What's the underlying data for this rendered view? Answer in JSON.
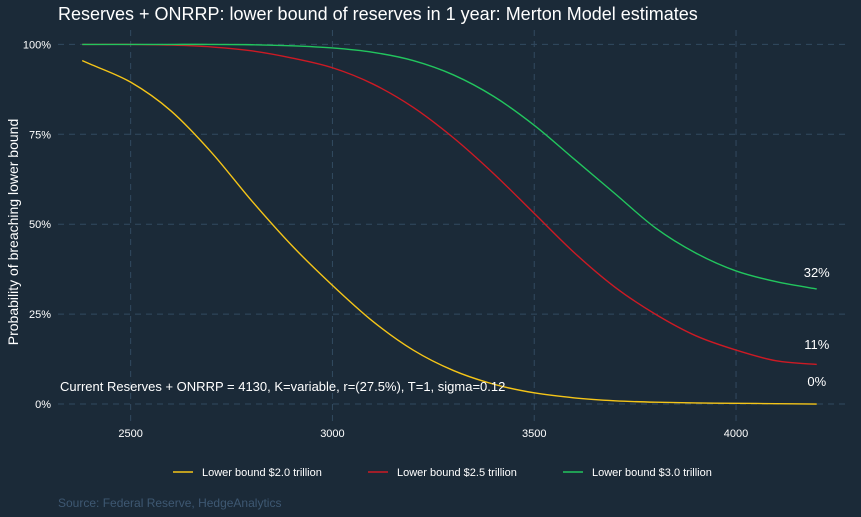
{
  "chart_data": {
    "type": "line",
    "title": "Reserves + ONRRP: lower bound of reserves in 1 year: Merton Model estimates",
    "xlabel": "",
    "ylabel": "Probability of breaching lower bound",
    "xlim": [
      2320,
      4270
    ],
    "ylim": [
      -0.05,
      1.04
    ],
    "x_ticks": [
      2500,
      3000,
      3500,
      4000
    ],
    "x_tick_labels": [
      "2500",
      "3000",
      "3500",
      "4000"
    ],
    "y_ticks": [
      0,
      0.25,
      0.5,
      0.75,
      1.0
    ],
    "y_tick_labels": [
      "0%",
      "25%",
      "50%",
      "75%",
      "100%"
    ],
    "grid": true,
    "legend_position": "bottom",
    "annotation": "Current Reserves + ONRRP = 4130, K=variable, r=(27.5%), T=1, sigma=0.12",
    "source": "Source: Federal Reserve, HedgeAnalytics",
    "x": [
      2380,
      2400,
      2500,
      2600,
      2700,
      2800,
      2900,
      3000,
      3100,
      3200,
      3300,
      3400,
      3500,
      3600,
      3700,
      3800,
      3900,
      4000,
      4100,
      4200
    ],
    "series": [
      {
        "name": "Lower bound $2.0 trillion",
        "color": "#f5c518",
        "values": [
          0.955,
          0.945,
          0.895,
          0.815,
          0.7,
          0.565,
          0.44,
          0.33,
          0.23,
          0.15,
          0.093,
          0.055,
          0.031,
          0.017,
          0.009,
          0.005,
          0.003,
          0.002,
          0.001,
          0.0
        ],
        "end_label": "0%"
      },
      {
        "name": "Lower bound $2.5 trillion",
        "color": "#cc1a24",
        "values": [
          1.0,
          1.0,
          1.0,
          0.998,
          0.993,
          0.982,
          0.962,
          0.935,
          0.89,
          0.825,
          0.74,
          0.64,
          0.53,
          0.42,
          0.325,
          0.25,
          0.19,
          0.15,
          0.12,
          0.11
        ],
        "end_label": "11%"
      },
      {
        "name": "Lower bound $3.0 trillion",
        "color": "#22c55e",
        "values": [
          1.0,
          1.0,
          1.0,
          1.0,
          1.0,
          0.999,
          0.996,
          0.99,
          0.978,
          0.955,
          0.915,
          0.855,
          0.775,
          0.68,
          0.585,
          0.49,
          0.42,
          0.37,
          0.34,
          0.32
        ],
        "end_label": "32%"
      }
    ]
  }
}
